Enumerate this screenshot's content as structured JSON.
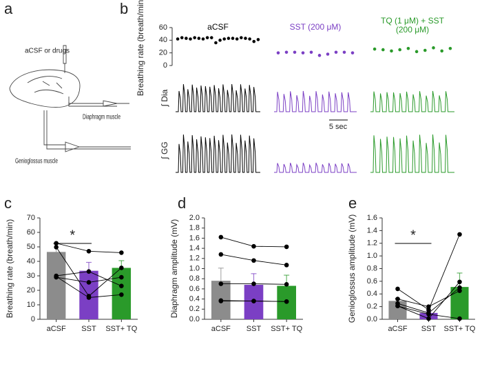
{
  "panel_labels": [
    "a",
    "b",
    "c",
    "d",
    "e"
  ],
  "diagram": {
    "injection_label": "aCSF or drugs",
    "diaphragm_label": "Diaphragm muscle",
    "genioglossus_label": "Genioglossus muscle"
  },
  "traces": {
    "labels": [
      "∫ Dia",
      "∫ GG"
    ],
    "scale_bar": "5 sec"
  },
  "chart_data": [
    {
      "type": "dot",
      "ylabel": "Breathing rate (breath/min)",
      "ylim": [
        0,
        60
      ],
      "yticks": [
        0,
        20,
        40,
        60
      ],
      "series": [
        {
          "name": "aCSF",
          "color": "#000000",
          "values": [
            42,
            44,
            43,
            42,
            44,
            43,
            42,
            44,
            44,
            36,
            40,
            42,
            43,
            43,
            42,
            44,
            43,
            42,
            38,
            41
          ]
        },
        {
          "name": "SST (200 μM)",
          "color": "#7b3fc4",
          "values": [
            20,
            21,
            21,
            20,
            21,
            16,
            18,
            21,
            21,
            20
          ]
        },
        {
          "name": "TQ (1 μM) + SST (200 μM)",
          "color": "#2a9a2a",
          "values": [
            26,
            25,
            23,
            25,
            27,
            22,
            24,
            28,
            23,
            27
          ]
        }
      ]
    },
    {
      "type": "bar",
      "ylabel": "Breathing rate (breath/min)",
      "categories": [
        "aCSF",
        "SST",
        "SST+ TQ"
      ],
      "values": [
        46.5,
        33.5,
        35.5
      ],
      "errors": [
        5.5,
        5.8,
        5
      ],
      "colors": [
        "#8c8c8c",
        "#7b3fc4",
        "#2a9a2a"
      ],
      "points": [
        [
          52.5,
          47,
          46
        ],
        [
          49.8,
          16,
          35.5
        ],
        [
          30,
          33,
          23
        ],
        [
          29,
          25.5,
          29
        ],
        [
          29.5,
          15,
          17
        ]
      ],
      "annotation": "*",
      "ylim": [
        0,
        70
      ],
      "yticks": [
        0,
        10,
        20,
        30,
        40,
        50,
        60,
        70
      ]
    },
    {
      "type": "bar",
      "ylabel": "Diaphragm amplitude (mV)",
      "categories": [
        "aCSF",
        "SST",
        "SST+ TQ"
      ],
      "values": [
        0.76,
        0.68,
        0.66
      ],
      "errors": [
        0.25,
        0.22,
        0.21
      ],
      "colors": [
        "#8c8c8c",
        "#7b3fc4",
        "#2a9a2a"
      ],
      "points": [
        [
          1.62,
          1.44,
          1.43
        ],
        [
          1.28,
          1.16,
          1.07
        ],
        [
          0.7,
          0.7,
          0.69
        ],
        [
          0.37,
          0.36,
          0.35
        ],
        [
          0.36,
          0.36,
          0.35
        ]
      ],
      "ylim": [
        0,
        2
      ],
      "yticks": [
        {
          "value": 0,
          "label": "0.0"
        },
        0.2,
        0.4,
        0.6,
        0.8,
        {
          "value": 1,
          "label": "1.0"
        },
        1.2,
        1.4,
        1.6,
        1.8,
        {
          "value": 2,
          "label": "2.0"
        }
      ]
    },
    {
      "type": "bar",
      "ylabel": "Genioglossus amplitude (mV)",
      "categories": [
        "aCSF",
        "SST",
        "SST+ TQ"
      ],
      "values": [
        0.29,
        0.1,
        0.51
      ],
      "errors": [
        0.04,
        0.03,
        0.22
      ],
      "colors": [
        "#8c8c8c",
        "#7b3fc4",
        "#2a9a2a"
      ],
      "points": [
        [
          0.48,
          0.15,
          1.34
        ],
        [
          0.32,
          0.2,
          0.45
        ],
        [
          0.25,
          0.1,
          0.5
        ],
        [
          0.21,
          0.01,
          0.59
        ],
        [
          0.21,
          0.08,
          0.01
        ]
      ],
      "annotation": "*",
      "ylim": [
        0,
        1.6
      ],
      "yticks": [
        {
          "value": 0,
          "label": "0.0"
        },
        0.2,
        0.4,
        0.6,
        0.8,
        {
          "value": 1,
          "label": "1.0"
        },
        1.2,
        1.4,
        1.6
      ]
    }
  ]
}
